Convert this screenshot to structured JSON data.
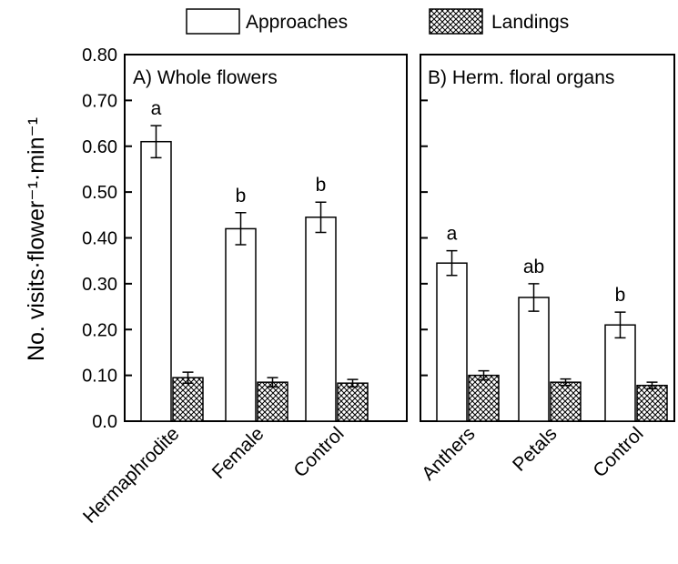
{
  "chart_data": [
    {
      "type": "bar",
      "title": "A) Whole flowers",
      "categories": [
        "Hermaphrodite",
        "Female",
        "Control"
      ],
      "series": [
        {
          "name": "Approaches",
          "values": [
            0.61,
            0.42,
            0.445
          ],
          "errors": [
            0.035,
            0.035,
            0.033
          ]
        },
        {
          "name": "Landings",
          "values": [
            0.095,
            0.085,
            0.083
          ],
          "errors": [
            0.012,
            0.01,
            0.008
          ]
        }
      ],
      "significance": [
        "a",
        "b",
        "b"
      ],
      "ylabel": "No. visits·flower⁻¹·min⁻¹",
      "ylim": [
        0,
        0.8
      ],
      "yticks": [
        "0.0",
        "0.10",
        "0.20",
        "0.30",
        "0.40",
        "0.50",
        "0.60",
        "0.70",
        "0.80"
      ],
      "grid": false,
      "legend": "top"
    },
    {
      "type": "bar",
      "title": "B) Herm. floral organs",
      "categories": [
        "Anthers",
        "Petals",
        "Control"
      ],
      "series": [
        {
          "name": "Approaches",
          "values": [
            0.345,
            0.27,
            0.21
          ],
          "errors": [
            0.027,
            0.03,
            0.028
          ]
        },
        {
          "name": "Landings",
          "values": [
            0.1,
            0.085,
            0.078
          ],
          "errors": [
            0.01,
            0.007,
            0.007
          ]
        }
      ],
      "significance": [
        "a",
        "ab",
        "b"
      ],
      "ylim": [
        0,
        0.8
      ],
      "grid": false
    }
  ],
  "legend": {
    "items": [
      {
        "label": "Approaches",
        "pattern": "white"
      },
      {
        "label": "Landings",
        "pattern": "crosshatch"
      }
    ]
  },
  "colors": {
    "bar_outline": "#000000",
    "approaches_fill": "#ffffff",
    "hatch": "#000000"
  }
}
